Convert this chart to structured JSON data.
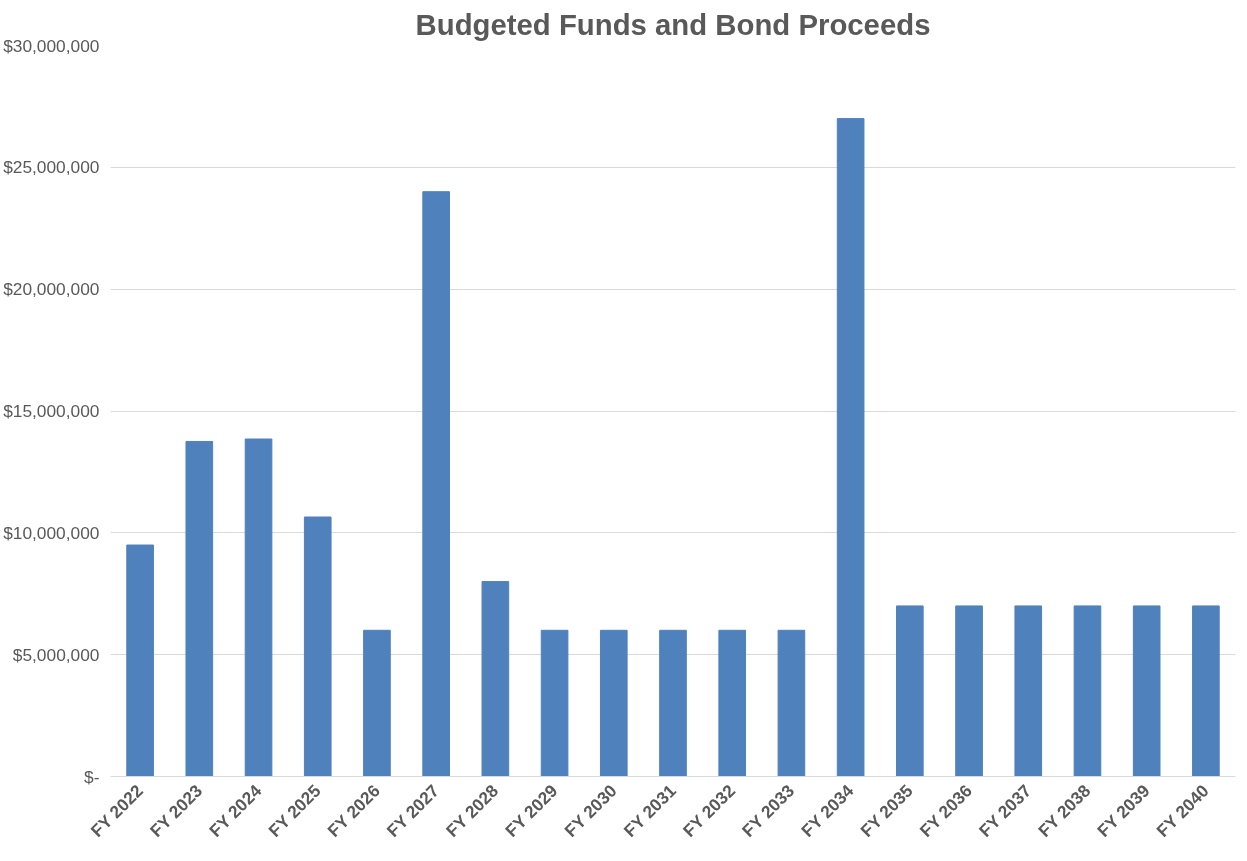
{
  "chart_data": {
    "type": "bar",
    "title": "Budgeted Funds and Bond Proceeds",
    "categories": [
      "FY 2022",
      "FY 2023",
      "FY 2024",
      "FY 2025",
      "FY 2026",
      "FY 2027",
      "FY 2028",
      "FY 2029",
      "FY 2030",
      "FY 2031",
      "FY 2032",
      "FY 2033",
      "FY 2034",
      "FY 2035",
      "FY 2036",
      "FY 2037",
      "FY 2038",
      "FY 2039",
      "FY 2040"
    ],
    "values": [
      9500000,
      13750000,
      13850000,
      10650000,
      6000000,
      24000000,
      8000000,
      6000000,
      6000000,
      6000000,
      6000000,
      6000000,
      27000000,
      7000000,
      7000000,
      7000000,
      7000000,
      7000000,
      7000000
    ],
    "color": "#4f81bd",
    "ylim": [
      0,
      30000000
    ],
    "yticks": [
      {
        "value": 0,
        "label": "$-"
      },
      {
        "value": 5000000,
        "label": "$5,000,000"
      },
      {
        "value": 10000000,
        "label": "$10,000,000"
      },
      {
        "value": 15000000,
        "label": "$15,000,000"
      },
      {
        "value": 20000000,
        "label": "$20,000,000"
      },
      {
        "value": 25000000,
        "label": "$25,000,000"
      },
      {
        "value": 30000000,
        "label": "$30,000,000"
      }
    ],
    "grid": "y"
  }
}
